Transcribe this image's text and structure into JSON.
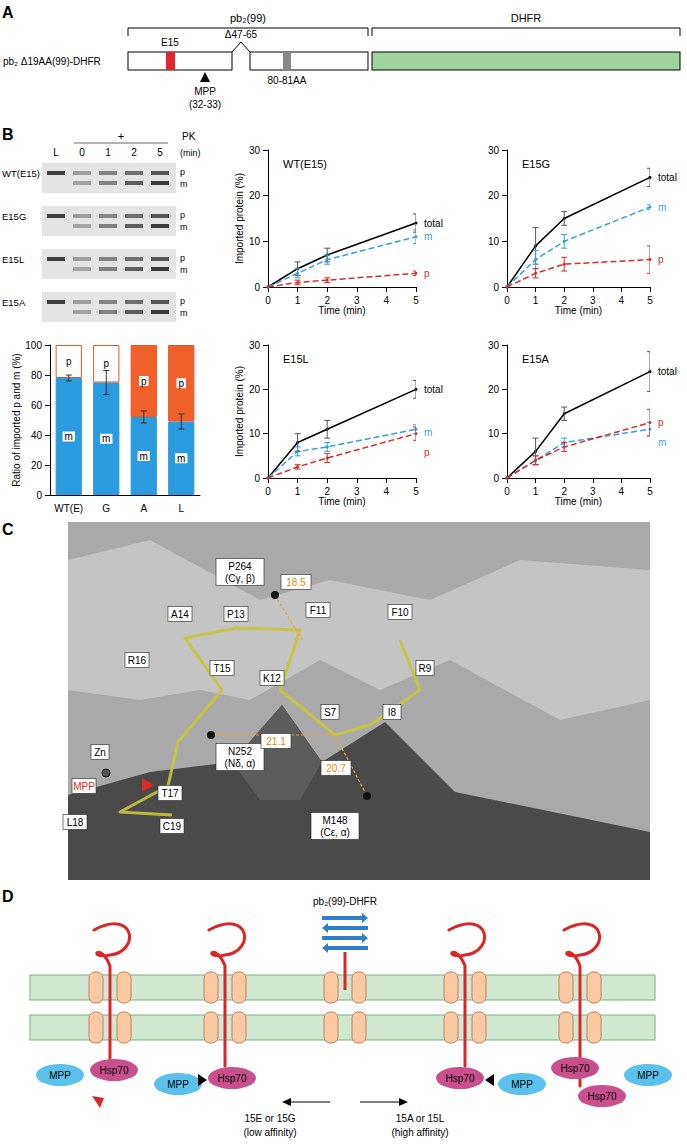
{
  "figure": {
    "A": {
      "letter": "A",
      "construct": "pb₂ Δ19AA(99)-DHFR",
      "presequence_bracket": "pb₂(99)",
      "dhfr_bracket": "DHFR",
      "residue": "E15",
      "deletion": "Δ47-65",
      "motif": "80-81AA",
      "cleavage_enzyme": "MPP",
      "cleavage_site": "(32-33)"
    },
    "B": {
      "letter": "B",
      "gel": {
        "lanes": [
          "L",
          "0",
          "1",
          "2",
          "5"
        ],
        "treatment": "+",
        "protease": "PK",
        "unit": "(min)",
        "rows": [
          "WT(E15)",
          "E15G",
          "E15L",
          "E15A"
        ],
        "bands": [
          "p",
          "m"
        ]
      }
    },
    "C": {
      "letter": "C",
      "residues": [
        "S7",
        "I8",
        "R9",
        "F10",
        "F11",
        "K12",
        "P13",
        "A14",
        "T15",
        "R16",
        "T17",
        "L18",
        "C19"
      ],
      "atoms": [
        [
          "P264",
          "(Cγ, β)"
        ],
        [
          "N252",
          "(Nδ, α)"
        ],
        [
          "M148",
          "(Cε, α)"
        ],
        [
          "Zn"
        ]
      ],
      "distances": [
        18.5,
        21.1,
        20.7
      ],
      "cleavage": "MPP"
    },
    "D": {
      "letter": "D",
      "substrate": "pb₂(99)-DHFR",
      "mpp": "MPP",
      "hsp70": "Hsp70",
      "low": [
        "15E or 15G",
        "(low affinity)"
      ],
      "high": [
        "15A or 15L",
        "(high affinity)"
      ]
    }
  },
  "chart_data": [
    {
      "type": "line",
      "title": "WT(E15)",
      "x_label": "Time (min)",
      "y_label": "Imported protein (%)",
      "x": [
        0,
        1,
        2,
        5
      ],
      "xlim": [
        0,
        5
      ],
      "xticks": [
        0,
        1,
        2,
        3,
        4,
        5
      ],
      "ylim": [
        0,
        30
      ],
      "yticks": [
        0,
        10,
        20,
        30
      ],
      "grid": false,
      "series": [
        {
          "name": "total",
          "color": "#000000",
          "line_style": "solid",
          "values": [
            0,
            4,
            7,
            14
          ],
          "errors": [
            0,
            1.5,
            1.5,
            2
          ]
        },
        {
          "name": "m",
          "color": "#3a9fd6",
          "line_style": "dashed",
          "values": [
            0,
            3,
            6,
            11
          ],
          "errors": [
            0,
            1,
            1,
            1.5
          ]
        },
        {
          "name": "p",
          "color": "#d62d2d",
          "line_style": "dashed",
          "values": [
            0,
            1,
            1.5,
            3
          ],
          "errors": [
            0,
            0.5,
            0.5,
            0.5
          ]
        }
      ]
    },
    {
      "type": "line",
      "title": "E15G",
      "x_label": "Time (min)",
      "x": [
        0,
        1,
        2,
        5
      ],
      "xlim": [
        0,
        5
      ],
      "xticks": [
        0,
        1,
        2,
        3,
        4,
        5
      ],
      "ylim": [
        0,
        30
      ],
      "yticks": [
        0,
        10,
        20,
        30
      ],
      "grid": false,
      "series": [
        {
          "name": "total",
          "color": "#000000",
          "line_style": "solid",
          "values": [
            0,
            9,
            15,
            24
          ],
          "errors": [
            0,
            4,
            1.5,
            2
          ]
        },
        {
          "name": "m",
          "color": "#3a9fd6",
          "line_style": "dashed",
          "values": [
            0,
            6,
            10,
            17.5
          ],
          "errors": [
            0,
            2,
            1.5,
            0.5
          ]
        },
        {
          "name": "p",
          "color": "#d62d2d",
          "line_style": "dashed",
          "values": [
            0,
            3,
            5,
            6
          ],
          "errors": [
            0,
            1,
            1.5,
            3
          ]
        }
      ]
    },
    {
      "type": "line",
      "title": "E15L",
      "x_label": "Time (min)",
      "y_label": "Imported protein (%)",
      "x": [
        0,
        1,
        2,
        5
      ],
      "xlim": [
        0,
        5
      ],
      "xticks": [
        0,
        1,
        2,
        3,
        4,
        5
      ],
      "ylim": [
        0,
        30
      ],
      "yticks": [
        0,
        10,
        20,
        30
      ],
      "grid": false,
      "series": [
        {
          "name": "total",
          "color": "#000000",
          "line_style": "solid",
          "values": [
            0,
            8,
            11,
            20
          ],
          "errors": [
            0,
            2,
            2,
            2
          ]
        },
        {
          "name": "m",
          "color": "#3a9fd6",
          "line_style": "dashed",
          "values": [
            0,
            6,
            7,
            11
          ],
          "errors": [
            0,
            1,
            1,
            1
          ]
        },
        {
          "name": "p",
          "color": "#d62d2d",
          "line_style": "dashed",
          "values": [
            0,
            2.5,
            4.5,
            10
          ],
          "errors": [
            0,
            0.5,
            1,
            1.5
          ]
        }
      ]
    },
    {
      "type": "line",
      "title": "E15A",
      "x_label": "Time (min)",
      "x": [
        0,
        1,
        2,
        5
      ],
      "xlim": [
        0,
        5
      ],
      "xticks": [
        0,
        1,
        2,
        3,
        4,
        5
      ],
      "ylim": [
        0,
        30
      ],
      "yticks": [
        0,
        10,
        20,
        30
      ],
      "grid": false,
      "series": [
        {
          "name": "total",
          "color": "#000000",
          "line_style": "solid",
          "values": [
            0,
            6,
            14.5,
            24
          ],
          "errors": [
            0,
            3,
            1.5,
            4.5
          ]
        },
        {
          "name": "m",
          "color": "#3a9fd6",
          "line_style": "dashed",
          "values": [
            0,
            4,
            8,
            11
          ],
          "errors": [
            0,
            1,
            1,
            1.5
          ]
        },
        {
          "name": "p",
          "color": "#d62d2d",
          "line_style": "dashed",
          "values": [
            0,
            4,
            7,
            12.5
          ],
          "errors": [
            0,
            1,
            1,
            3
          ]
        }
      ]
    },
    {
      "type": "bar",
      "stacked": true,
      "grid": false,
      "y_label": "Ratio of imported p and m (%)",
      "categories": [
        "WT(E)",
        "G",
        "A",
        "L"
      ],
      "ylim": [
        0,
        100
      ],
      "yticks": [
        0,
        20,
        40,
        60,
        80,
        100
      ],
      "series": [
        {
          "name": "m",
          "color": "#2b9be0",
          "values": [
            78,
            75,
            52,
            49
          ],
          "errors": [
            2,
            8,
            4,
            5
          ]
        },
        {
          "name": "p",
          "colors": [
            "#ffffff",
            "#ffffff",
            "#f0602a",
            "#f0602a"
          ],
          "values": [
            22,
            25,
            48,
            51
          ]
        }
      ]
    }
  ]
}
